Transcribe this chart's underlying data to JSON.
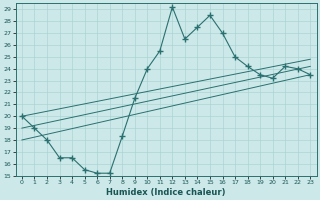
{
  "xlabel": "Humidex (Indice chaleur)",
  "background_color": "#cce8e8",
  "line_color": "#2a7070",
  "grid_color": "#aad4d4",
  "xlim": [
    -0.5,
    23.5
  ],
  "ylim": [
    15,
    29.5
  ],
  "yticks": [
    15,
    16,
    17,
    18,
    19,
    20,
    21,
    22,
    23,
    24,
    25,
    26,
    27,
    28,
    29
  ],
  "xticks": [
    0,
    1,
    2,
    3,
    4,
    5,
    6,
    7,
    8,
    9,
    10,
    11,
    12,
    13,
    14,
    15,
    16,
    17,
    18,
    19,
    20,
    21,
    22,
    23
  ],
  "main_series": {
    "x": [
      0,
      1,
      2,
      3,
      4,
      5,
      6,
      7,
      8,
      9,
      10,
      11,
      12,
      13,
      14,
      15,
      16,
      17,
      18,
      19,
      20,
      21,
      22,
      23
    ],
    "y": [
      20.0,
      19.0,
      18.0,
      16.5,
      16.5,
      15.5,
      15.2,
      15.2,
      18.3,
      21.5,
      24.0,
      25.5,
      29.2,
      26.5,
      27.5,
      28.5,
      27.0,
      25.0,
      24.2,
      23.5,
      23.2,
      24.2,
      24.0,
      23.5
    ]
  },
  "diag_lines": [
    {
      "x": [
        0,
        23
      ],
      "y": [
        20.0,
        24.8
      ]
    },
    {
      "x": [
        0,
        23
      ],
      "y": [
        19.0,
        24.2
      ]
    },
    {
      "x": [
        0,
        23
      ],
      "y": [
        18.0,
        23.5
      ]
    }
  ]
}
